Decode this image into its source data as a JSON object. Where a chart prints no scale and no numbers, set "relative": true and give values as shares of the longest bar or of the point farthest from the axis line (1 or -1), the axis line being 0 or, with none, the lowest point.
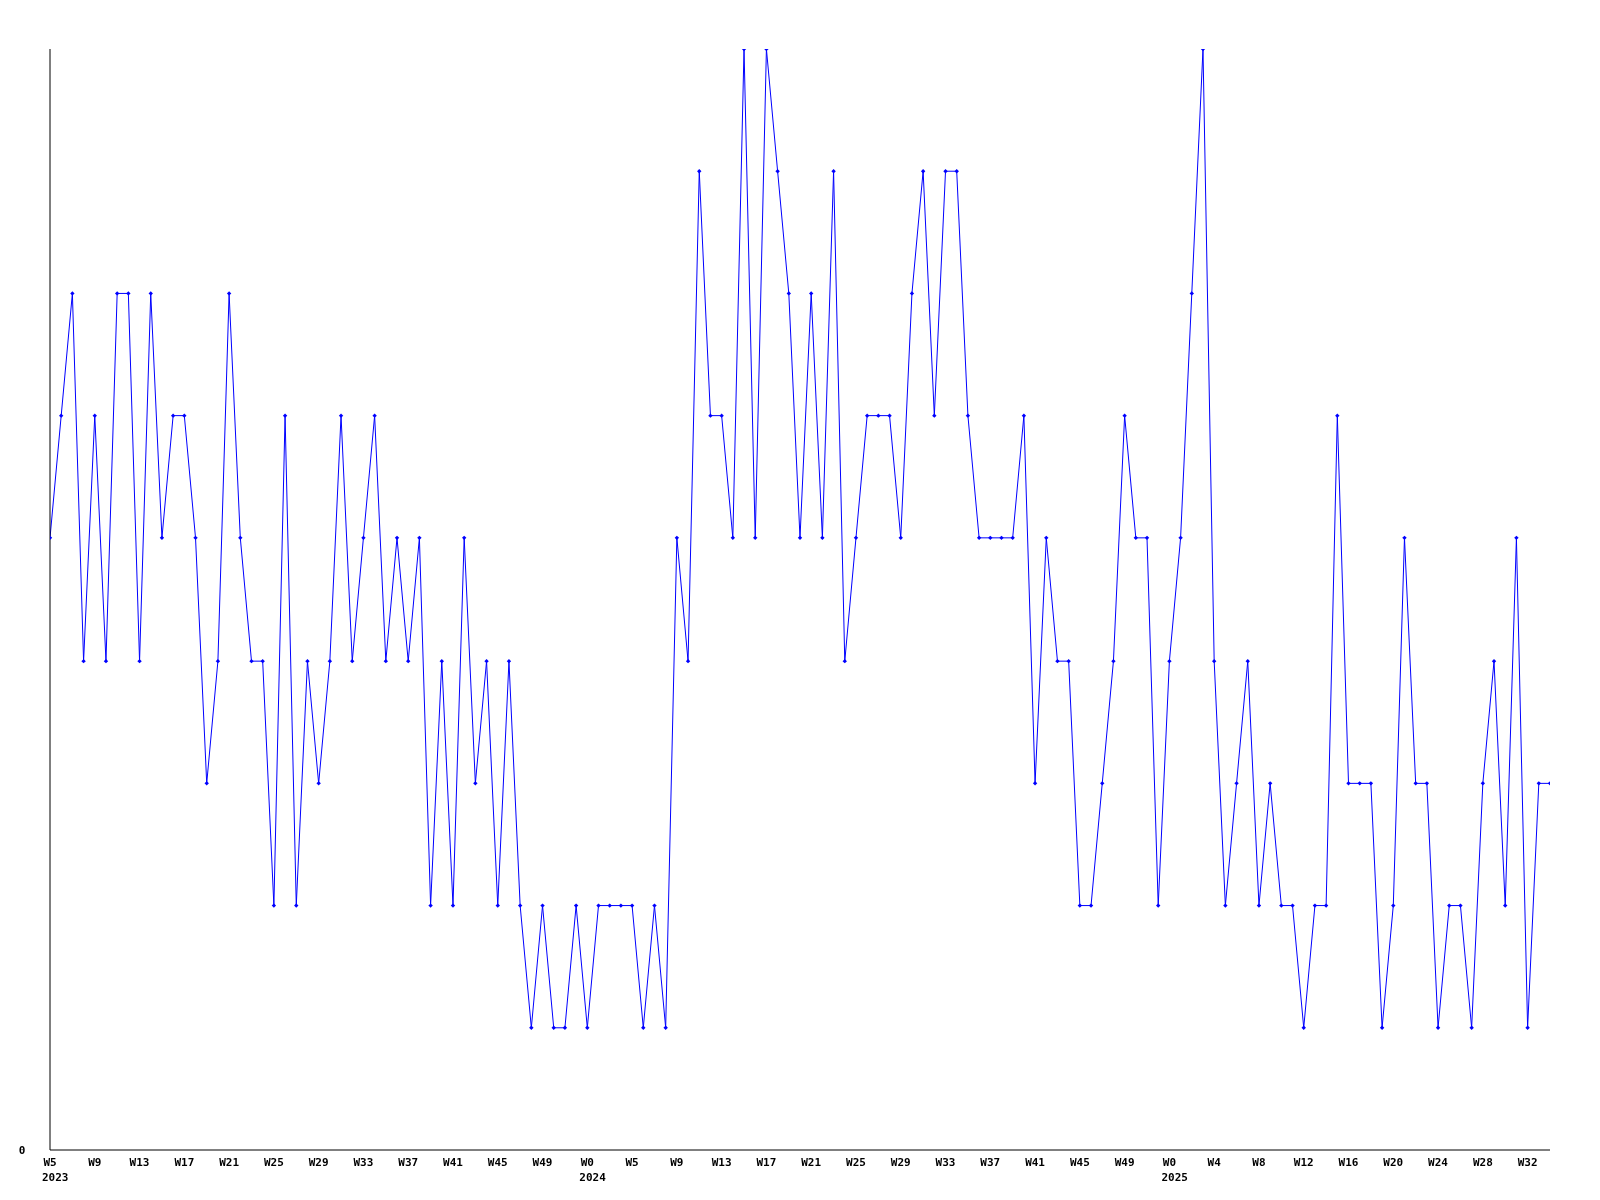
{
  "chart_data": {
    "type": "line",
    "relative": true,
    "annotations": [
      "0"
    ],
    "grid": false,
    "legend": false,
    "marker": "diamond",
    "line_style": "solid",
    "categories": [
      "W5 2023",
      null,
      null,
      null,
      "W9",
      null,
      null,
      null,
      "W13",
      null,
      null,
      null,
      "W17",
      null,
      null,
      null,
      "W21",
      null,
      null,
      null,
      "W25",
      null,
      null,
      null,
      "W29",
      null,
      null,
      null,
      "W33",
      null,
      null,
      null,
      "W37",
      null,
      null,
      null,
      "W41",
      null,
      null,
      null,
      "W45",
      null,
      null,
      null,
      "W49",
      null,
      null,
      null,
      "W0 2024",
      null,
      null,
      null,
      "W5",
      null,
      null,
      null,
      "W9",
      null,
      null,
      null,
      "W13",
      null,
      null,
      null,
      "W17",
      null,
      null,
      null,
      "W21",
      null,
      null,
      null,
      "W25",
      null,
      null,
      null,
      "W29",
      null,
      null,
      null,
      "W33",
      null,
      null,
      null,
      "W37",
      null,
      null,
      null,
      "W41",
      null,
      null,
      null,
      "W45",
      null,
      null,
      null,
      "W49",
      null,
      null,
      null,
      "W0 2025",
      null,
      null,
      null,
      "W4",
      null,
      null,
      null,
      "W8",
      null,
      null,
      null,
      "W12",
      null,
      null,
      null,
      "W16",
      null,
      null,
      null,
      "W20",
      null,
      null,
      null,
      "W24",
      null,
      null,
      null,
      "W28",
      null,
      null,
      null,
      "W32",
      null,
      null
    ],
    "series": [
      {
        "color": "#0000ff",
        "values": [
          0.556,
          0.667,
          0.778,
          0.444,
          0.667,
          0.444,
          0.778,
          0.778,
          0.444,
          0.778,
          0.556,
          0.667,
          0.667,
          0.556,
          0.333,
          0.444,
          0.778,
          0.556,
          0.444,
          0.444,
          0.222,
          0.667,
          0.222,
          0.444,
          0.333,
          0.444,
          0.667,
          0.444,
          0.556,
          0.667,
          0.444,
          0.556,
          0.444,
          0.556,
          0.222,
          0.444,
          0.222,
          0.556,
          0.333,
          0.444,
          0.222,
          0.444,
          0.222,
          0.111,
          0.222,
          0.111,
          0.111,
          0.222,
          0.111,
          0.222,
          0.222,
          0.222,
          0.222,
          0.111,
          0.222,
          0.111,
          0.556,
          0.444,
          0.889,
          0.667,
          0.667,
          0.556,
          1,
          0.556,
          1,
          0.889,
          0.778,
          0.556,
          0.778,
          0.556,
          0.889,
          0.444,
          0.556,
          0.667,
          0.667,
          0.667,
          0.556,
          0.778,
          0.889,
          0.667,
          0.889,
          0.889,
          0.667,
          0.556,
          0.556,
          0.556,
          0.556,
          0.667,
          0.333,
          0.556,
          0.444,
          0.444,
          0.222,
          0.222,
          0.333,
          0.444,
          0.667,
          0.556,
          0.556,
          0.222,
          0.444,
          0.556,
          0.778,
          1,
          0.444,
          0.222,
          0.333,
          0.444,
          0.222,
          0.333,
          0.222,
          0.222,
          0.111,
          0.222,
          0.222,
          0.667,
          0.333,
          0.333,
          0.333,
          0.111,
          0.222,
          0.556,
          0.333,
          0.333,
          0.111,
          0.222,
          0.222,
          0.111,
          0.333,
          0.444,
          0.222,
          0.556,
          0.111,
          0.333,
          0.333
        ]
      }
    ]
  }
}
